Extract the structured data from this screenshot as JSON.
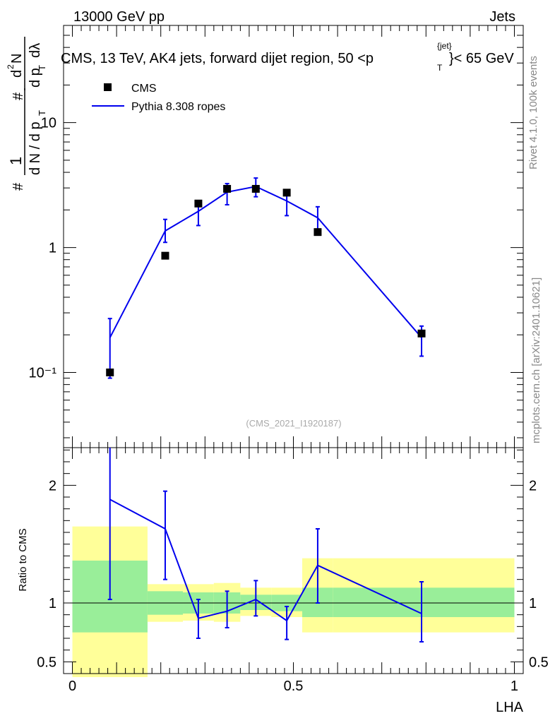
{
  "header": {
    "left": "13000 GeV pp",
    "right": "Jets"
  },
  "title_text": "CMS, 13 TeV, AK4 jets, forward dijet region, 50 <p",
  "title_sup": "{jet}",
  "title_sub": "T",
  "title_tail": "}< 65 GeV",
  "ylabel_main": {
    "parts": [
      "#",
      "1",
      "d N / d p",
      "T",
      "#",
      "d",
      "2",
      "N",
      "d p",
      "T",
      "dλ"
    ]
  },
  "side_labels": {
    "rivet": "Rivet 4.1.0,  100k events",
    "mcplots": "mcplots.cern.ch [arXiv:2401.10621]"
  },
  "watermark": "(CMS_2021_I1920187)",
  "legend": [
    {
      "label": "CMS",
      "kind": "data"
    },
    {
      "label": "Pythia 8.308 ropes",
      "kind": "mc"
    }
  ],
  "colors": {
    "mc": "#0000ee",
    "band_inner": "#99ee99",
    "band_outer": "#ffff99",
    "data": "#000000"
  },
  "chart_data": [
    {
      "type": "scatter",
      "panel": "main",
      "yscale": "log",
      "xlim": [
        -0.02,
        1.02
      ],
      "ylim": [
        0.025,
        60
      ],
      "ytick_labels": [
        "10⁻¹",
        "1",
        "10"
      ],
      "series": [
        {
          "name": "CMS",
          "x": [
            0.085,
            0.21,
            0.285,
            0.35,
            0.415,
            0.485,
            0.555,
            0.79
          ],
          "y": [
            0.1,
            0.86,
            2.25,
            2.95,
            2.95,
            2.75,
            1.33,
            0.205
          ]
        },
        {
          "name": "Pythia 8.308 ropes",
          "x": [
            0.085,
            0.21,
            0.285,
            0.35,
            0.415,
            0.485,
            0.555,
            0.79
          ],
          "y": [
            0.19,
            1.36,
            1.95,
            2.78,
            3.08,
            2.36,
            1.73,
            0.19
          ],
          "err_low": [
            0.09,
            1.1,
            1.5,
            2.2,
            2.55,
            1.8,
            1.4,
            0.135
          ],
          "err_high": [
            0.27,
            1.68,
            2.3,
            3.25,
            3.6,
            2.82,
            2.12,
            0.235
          ]
        }
      ]
    },
    {
      "type": "line",
      "panel": "ratio",
      "xlabel": "LHA",
      "ylabel": "Ratio to CMS",
      "xlim": [
        -0.02,
        1.02
      ],
      "ylim": [
        0.4,
        2.32
      ],
      "ytick_labels": [
        "0.5",
        "1",
        "2"
      ],
      "xtick_labels": [
        "0",
        "0.5",
        "1"
      ],
      "bins": [
        0.0,
        0.17,
        0.25,
        0.32,
        0.38,
        0.45,
        0.52,
        0.59,
        1.0
      ],
      "band_inner_low": [
        0.75,
        0.9,
        0.91,
        0.91,
        0.94,
        0.93,
        0.88,
        0.88
      ],
      "band_inner_high": [
        1.36,
        1.1,
        1.09,
        1.09,
        1.07,
        1.07,
        1.13,
        1.13
      ],
      "band_outer_low": [
        0.37,
        0.84,
        0.85,
        0.84,
        0.89,
        0.88,
        0.75,
        0.75
      ],
      "band_outer_high": [
        1.65,
        1.16,
        1.16,
        1.17,
        1.13,
        1.13,
        1.38,
        1.38
      ],
      "x": [
        0.085,
        0.21,
        0.285,
        0.35,
        0.415,
        0.485,
        0.555,
        0.79
      ],
      "y": [
        1.88,
        1.63,
        0.87,
        0.93,
        1.03,
        0.85,
        1.32,
        0.91
      ],
      "err_low": [
        1.03,
        1.2,
        0.7,
        0.79,
        0.89,
        0.69,
        1.0,
        0.67
      ],
      "err_high": [
        2.35,
        1.95,
        1.03,
        1.1,
        1.19,
        0.97,
        1.63,
        1.18
      ]
    }
  ]
}
